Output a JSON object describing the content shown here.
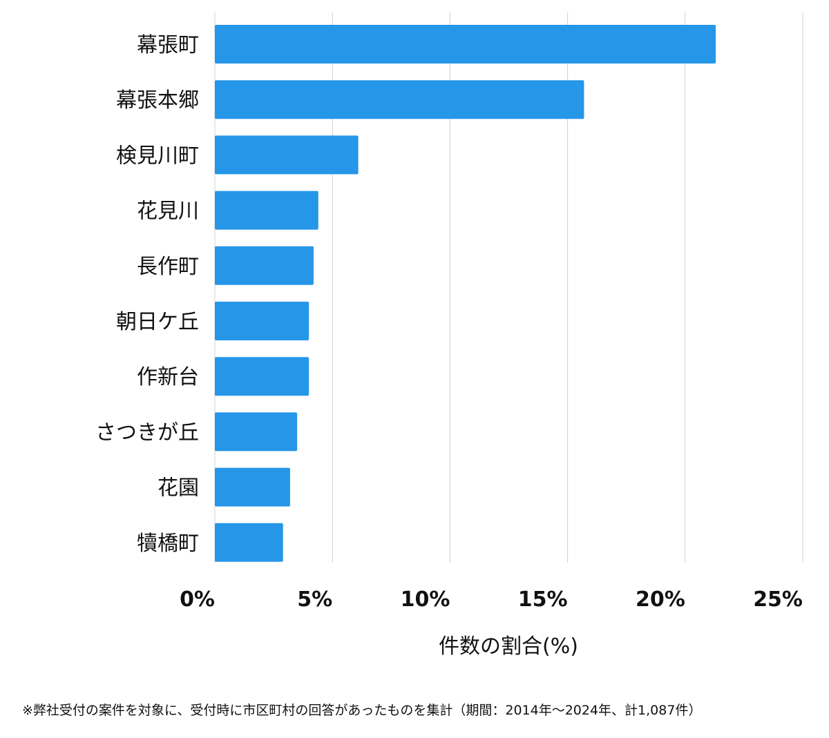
{
  "chart_data": {
    "type": "bar",
    "orientation": "horizontal",
    "categories": [
      "幕張町",
      "幕張本郷",
      "検見川町",
      "花見川",
      "長作町",
      "朝日ケ丘",
      "作新台",
      "さつきが丘",
      "花園",
      "犢橋町"
    ],
    "values": [
      21.3,
      15.7,
      6.1,
      4.4,
      4.2,
      4.0,
      4.0,
      3.5,
      3.2,
      2.9
    ],
    "xlabel": "件数の割合(%)",
    "xlim": [
      0,
      25
    ],
    "xticks": [
      0,
      5,
      10,
      15,
      20,
      25
    ],
    "xtick_labels": [
      "0%",
      "5%",
      "10%",
      "15%",
      "20%",
      "25%"
    ],
    "grid": "vertical",
    "bar_color": "#2696e8",
    "grid_color": "#d0d0d0"
  },
  "footnote": "※弊社受付の案件を対象に、受付時に市区町村の回答があったものを集計（期間：2014年〜2024年、計1,087件）"
}
